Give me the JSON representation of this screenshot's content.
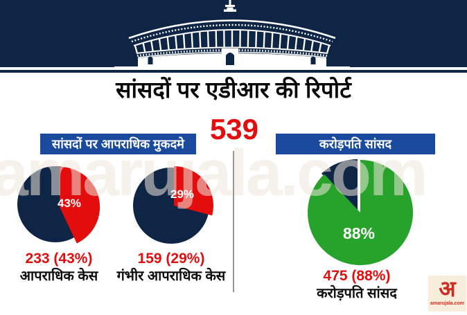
{
  "masthead": {
    "title": "सांसदों पर एडीआर की रिपोर्ट"
  },
  "total_mps": "539",
  "left_section": {
    "heading": "सांसदों पर आपराधिक मुकदमे",
    "pie_criminal": {
      "pct": "43%",
      "value": "233 (43%)",
      "caption": "आपराधिक केस"
    },
    "pie_serious": {
      "pct": "29%",
      "value": "159 (29%)",
      "caption": "गंभीर आपराधिक केस"
    }
  },
  "right_section": {
    "heading": "करोड़पति सांसद",
    "pie_crorepati": {
      "pct": "88%",
      "value": "475 (88%)",
      "caption": "करोड़पति सांसद"
    }
  },
  "watermark": "amarujala.com",
  "logo": {
    "glyph": "अ",
    "site": "amarujala.com"
  },
  "colors": {
    "navy": "#0e2546",
    "header_bar_blue": "#1a4a9e",
    "red": "#e30d0d",
    "green": "#27a22b",
    "divider_gray": "#969696",
    "logo_cream": "#f6eeda",
    "logo_red": "#d02b20"
  },
  "chart_data": [
    {
      "type": "pie",
      "title": "सांसदों पर आपराधिक मुकदमे",
      "subtitle": "आपराधिक केस",
      "labels": [
        "आपराधिक केस",
        ""
      ],
      "values": [
        43,
        57
      ],
      "count": 233,
      "count_label": "233 (43%)",
      "colors": [
        "#e30d0d",
        "#0e2546"
      ],
      "total_reference": 539,
      "highlight_start_angle_deg": 0,
      "legend_position": "none"
    },
    {
      "type": "pie",
      "title": "सांसदों पर आपराधिक मुकदमे",
      "subtitle": "गंभीर आपराधिक केस",
      "labels": [
        "गंभीर आपराधिक केस",
        ""
      ],
      "values": [
        29,
        71
      ],
      "count": 159,
      "count_label": "159 (29%)",
      "colors": [
        "#e30d0d",
        "#0e2546"
      ],
      "total_reference": 539,
      "highlight_start_angle_deg": 0,
      "legend_position": "none"
    },
    {
      "type": "pie",
      "title": "करोड़पति सांसद",
      "labels": [
        "करोड़पति सांसद",
        ""
      ],
      "values": [
        88,
        12
      ],
      "count": 475,
      "count_label": "475 (88%)",
      "colors": [
        "#27a22b",
        "#0e2546"
      ],
      "total_reference": 539,
      "highlight_start_angle_deg": 0,
      "legend_position": "none"
    }
  ]
}
